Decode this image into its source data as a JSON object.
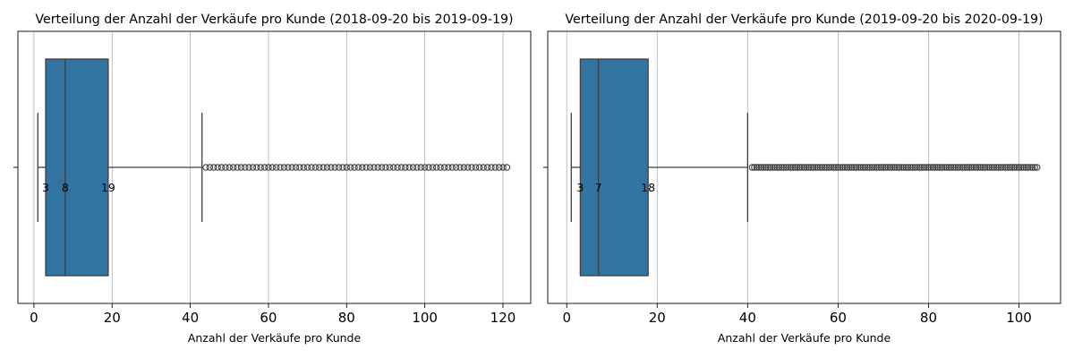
{
  "chart_data": [
    {
      "type": "boxplot",
      "title": "Verteilung der Anzahl der Verkäufe pro Kunde (2018-09-20 bis 2019-09-19)",
      "xlabel": "Anzahl der Verkäufe pro Kunde",
      "ylabel": "",
      "xlim": [
        -4.1,
        127.1
      ],
      "xticks": [
        0,
        20,
        40,
        60,
        80,
        100,
        120
      ],
      "grid": "x",
      "box": {
        "whisker_low": 1,
        "q1": 3,
        "median": 8,
        "q3": 19,
        "whisker_high": 43
      },
      "annotations": [
        "3",
        "8",
        "19"
      ],
      "outliers": [
        44,
        45,
        46,
        47,
        48,
        49,
        50,
        51,
        52,
        53,
        54,
        55,
        56,
        57,
        58,
        59,
        60,
        61,
        62,
        63,
        64,
        65,
        66,
        67,
        68,
        69,
        70,
        71,
        72,
        73,
        74,
        75,
        76,
        77,
        78,
        79,
        80,
        81,
        82,
        83,
        84,
        85,
        86,
        87,
        88,
        89,
        90,
        91,
        92,
        93,
        94,
        95,
        96,
        97,
        98,
        99,
        100,
        101,
        102,
        103,
        104,
        105,
        106,
        107,
        108,
        109,
        110,
        111,
        112,
        113,
        114,
        115,
        116,
        117,
        118,
        119,
        120,
        121
      ],
      "color": "#3274a1"
    },
    {
      "type": "boxplot",
      "title": "Verteilung der Anzahl der Verkäufe pro Kunde (2019-09-20 bis 2020-09-19)",
      "xlabel": "Anzahl der Verkäufe pro Kunde",
      "ylabel": "",
      "xlim": [
        -4.2,
        109.2
      ],
      "xticks": [
        0,
        20,
        40,
        60,
        80,
        100
      ],
      "grid": "x",
      "box": {
        "whisker_low": 1,
        "q1": 3,
        "median": 7,
        "q3": 18,
        "whisker_high": 40
      },
      "annotations": [
        "3",
        "7",
        "18"
      ],
      "outliers": [
        41,
        41.5,
        42,
        42.5,
        43,
        43.5,
        44,
        44.5,
        45,
        45.5,
        46,
        46.5,
        47,
        47.5,
        48,
        48.5,
        49,
        49.5,
        50,
        50.5,
        51,
        51.5,
        52,
        52.5,
        53,
        53.5,
        54,
        54.5,
        55,
        55.5,
        56,
        56.5,
        57,
        57.5,
        58,
        58.5,
        59,
        59.5,
        60,
        60.5,
        61,
        61.5,
        62,
        62.5,
        63,
        63.5,
        64,
        64.5,
        65,
        65.5,
        66,
        66.5,
        67,
        67.5,
        68,
        68.5,
        69,
        69.5,
        70,
        70.5,
        71,
        71.5,
        72,
        72.5,
        73,
        73.5,
        74,
        74.5,
        75,
        75.5,
        76,
        76.5,
        77,
        77.5,
        78,
        78.5,
        79,
        79.5,
        80,
        80.5,
        81,
        81.5,
        82,
        82.5,
        83,
        83.5,
        84,
        84.5,
        85,
        85.5,
        86,
        86.5,
        87,
        87.5,
        88,
        88.5,
        89,
        89.5,
        90,
        90.5,
        91,
        91.5,
        92,
        92.5,
        93,
        93.5,
        94,
        94.5,
        95,
        95.5,
        96,
        96.5,
        97,
        97.5,
        98,
        98.5,
        99,
        99.5,
        100,
        100.5,
        101,
        101.5,
        102,
        102.5,
        103,
        103.5,
        104
      ],
      "color": "#3274a1"
    }
  ]
}
